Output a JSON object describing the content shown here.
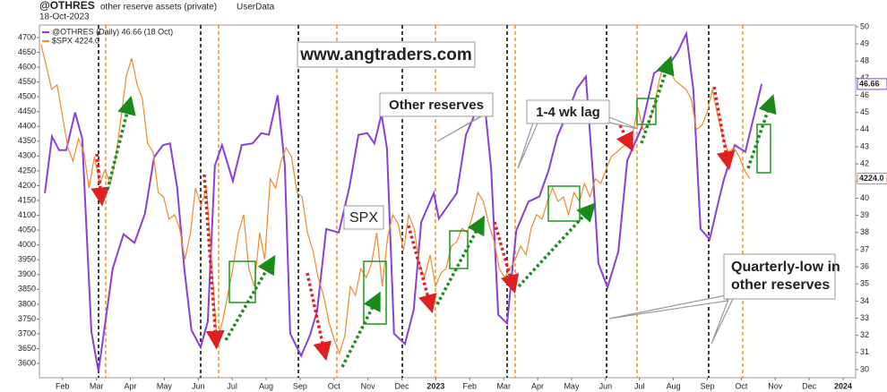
{
  "chart_data": {
    "type": "line",
    "title": "@OTHRES",
    "subtitle": "other reserve assets (private)",
    "source": "UserData",
    "date": "18-Oct-2023",
    "xlim": [
      1.32,
      25.37
    ],
    "ylim": [
      3552,
      4742
    ],
    "y2lim": [
      29.53,
      50.1
    ],
    "xticks": [
      {
        "value": 2,
        "label": "Feb"
      },
      {
        "value": 3,
        "label": "Mar"
      },
      {
        "value": 4,
        "label": "Apr"
      },
      {
        "value": 5,
        "label": "May"
      },
      {
        "value": 6,
        "label": "Jun"
      },
      {
        "value": 7,
        "label": "Jul"
      },
      {
        "value": 8,
        "label": "Aug"
      },
      {
        "value": 9,
        "label": "Sep"
      },
      {
        "value": 10,
        "label": "Oct"
      },
      {
        "value": 11,
        "label": "Nov"
      },
      {
        "value": 12,
        "label": "Dec"
      },
      {
        "value": 13,
        "label": "2023"
      },
      {
        "value": 14,
        "label": "Feb"
      },
      {
        "value": 15,
        "label": "Mar"
      },
      {
        "value": 16,
        "label": "Apr"
      },
      {
        "value": 17,
        "label": "May"
      },
      {
        "value": 18,
        "label": "Jun"
      },
      {
        "value": 19,
        "label": "Jul"
      },
      {
        "value": 20,
        "label": "Aug"
      },
      {
        "value": 21,
        "label": "Sep"
      },
      {
        "value": 22,
        "label": "Oct"
      },
      {
        "value": 23,
        "label": "Nov"
      },
      {
        "value": 24,
        "label": "Dec"
      },
      {
        "value": 25,
        "label": "2024"
      }
    ],
    "yticks": [
      3600,
      3650,
      3700,
      3750,
      3800,
      3850,
      3900,
      3950,
      4000,
      4050,
      4100,
      4150,
      4200,
      4250,
      4300,
      4350,
      4400,
      4450,
      4500,
      4550,
      4600,
      4650,
      4700
    ],
    "y2ticks": [
      30,
      31,
      32,
      33,
      34,
      35,
      36,
      37,
      38,
      39,
      40,
      41,
      42,
      43,
      44,
      45,
      46,
      47,
      48,
      49,
      50
    ],
    "series": [
      {
        "name": "@OTHRES (Daily) 46.66 (18 Oct)",
        "color": "#8a3fd6",
        "axis": "y2",
        "x": [
          1.48,
          1.69,
          1.9,
          2.11,
          2.37,
          2.58,
          2.85,
          3.06,
          3.27,
          3.48,
          3.8,
          4.12,
          4.43,
          4.7,
          4.96,
          5.17,
          5.38,
          5.59,
          5.8,
          6.07,
          6.28,
          6.49,
          6.7,
          7.02,
          7.28,
          7.6,
          7.86,
          8.08,
          8.34,
          8.55,
          8.71,
          9.03,
          9.29,
          9.5,
          9.77,
          10.14,
          10.45,
          10.72,
          10.98,
          11.19,
          11.4,
          11.56,
          11.77,
          12.09,
          12.35,
          12.57,
          12.94,
          13.09,
          13.62,
          13.89,
          14.41,
          14.63,
          14.84,
          15.1,
          15.37,
          15.73,
          16.05,
          16.32,
          16.58,
          16.84,
          17.16,
          17.42,
          17.64,
          17.79,
          18.06,
          18.38,
          18.64,
          19.06,
          19.43,
          19.91,
          20.12,
          20.38,
          20.59,
          20.8,
          21.07,
          21.28,
          21.49,
          21.81,
          22.12,
          22.6
        ],
        "values": [
          40.3,
          43.6,
          42.8,
          42.8,
          45.0,
          43.5,
          32.2,
          29.9,
          32.9,
          35.9,
          37.9,
          37.4,
          39.1,
          42.4,
          43.1,
          43.2,
          40.6,
          35.9,
          32.3,
          31.3,
          32.8,
          41.9,
          43.1,
          41.0,
          43.1,
          43.2,
          43.8,
          43.7,
          46.0,
          41.9,
          32.1,
          30.8,
          32.0,
          33.4,
          38.2,
          38.0,
          40.6,
          43.7,
          43.8,
          43.2,
          44.9,
          42.9,
          32.1,
          31.5,
          33.5,
          38.6,
          40.3,
          38.8,
          40.3,
          43.7,
          46.1,
          41.7,
          33.2,
          32.7,
          38.1,
          39.8,
          40.1,
          41.6,
          43.6,
          44.8,
          46.4,
          47.1,
          41.1,
          36.2,
          34.8,
          36.9,
          42.2,
          44.1,
          47.3,
          47.9,
          48.5,
          49.6,
          46.3,
          38.2,
          37.6,
          39.4,
          41.1,
          43.1,
          42.7,
          46.66
        ]
      },
      {
        "name": "$SPX 4224.0",
        "color": "#f0892c",
        "last_value_label": "4224.0",
        "x": [
          1.37,
          1.53,
          1.68,
          1.84,
          2.0,
          2.16,
          2.31,
          2.47,
          2.63,
          2.78,
          2.94,
          3.1,
          3.25,
          3.41,
          3.57,
          3.73,
          3.88,
          4.04,
          4.2,
          4.35,
          4.51,
          4.67,
          4.82,
          4.98,
          5.14,
          5.3,
          5.45,
          5.61,
          5.77,
          5.92,
          6.08,
          6.24,
          6.39,
          6.55,
          6.71,
          6.87,
          7.02,
          7.18,
          7.34,
          7.49,
          7.65,
          7.81,
          7.96,
          8.12,
          8.28,
          8.44,
          8.59,
          8.75,
          8.91,
          9.06,
          9.22,
          9.38,
          9.53,
          9.69,
          9.85,
          10.01,
          10.16,
          10.32,
          10.48,
          10.63,
          10.79,
          10.95,
          11.1,
          11.26,
          11.42,
          11.58,
          11.73,
          11.89,
          12.05,
          12.2,
          12.36,
          12.52,
          12.67,
          12.83,
          12.99,
          13.15,
          13.3,
          13.46,
          13.62,
          13.77,
          13.93,
          14.09,
          14.24,
          14.4,
          14.56,
          14.72,
          14.87,
          15.03,
          15.19,
          15.34,
          15.5,
          15.66,
          15.81,
          15.97,
          16.13,
          16.29,
          16.44,
          16.6,
          16.76,
          16.91,
          17.07,
          17.23,
          17.38,
          17.54,
          17.7,
          17.86,
          18.01,
          18.17,
          18.33,
          18.48,
          18.64,
          18.8,
          18.95,
          19.11,
          19.27,
          19.43,
          19.58,
          19.74,
          19.9,
          20.05,
          20.21,
          20.37,
          20.52,
          20.68,
          20.84,
          21.0,
          21.15,
          21.31,
          21.47,
          21.62,
          21.78,
          21.94,
          22.09,
          22.25
        ],
        "values": [
          4676,
          4600,
          4525,
          4540,
          4434,
          4328,
          4283,
          4359,
          4313,
          4192,
          4298,
          4207,
          4253,
          4207,
          4298,
          4434,
          4570,
          4630,
          4540,
          4495,
          4343,
          4313,
          4177,
          4162,
          4087,
          4102,
          4056,
          3951,
          4041,
          4192,
          4132,
          4192,
          3951,
          3679,
          3740,
          3830,
          3920,
          4041,
          4102,
          3920,
          3860,
          4041,
          3951,
          4223,
          4192,
          4283,
          4328,
          4298,
          4177,
          4162,
          4041,
          3981,
          3890,
          3830,
          3740,
          3679,
          3633,
          3694,
          3860,
          3830,
          3920,
          3890,
          3935,
          4041,
          3860,
          4026,
          4102,
          4071,
          3981,
          4102,
          4056,
          3935,
          3890,
          3966,
          3860,
          3905,
          3920,
          3996,
          4011,
          4056,
          4041,
          4102,
          4177,
          4147,
          4071,
          4011,
          3920,
          3890,
          3920,
          3951,
          3996,
          3966,
          4056,
          4102,
          4087,
          4147,
          4192,
          4147,
          4162,
          4102,
          4177,
          4147,
          4207,
          4162,
          4223,
          4207,
          4253,
          4298,
          4313,
          4328,
          4343,
          4374,
          4464,
          4389,
          4404,
          4464,
          4555,
          4615,
          4585,
          4555,
          4540,
          4525,
          4495,
          4389,
          4404,
          4449,
          4525,
          4434,
          4359,
          4313,
          4328,
          4298,
          4253,
          4224
        ]
      }
    ],
    "annotations": [
      {
        "text": "www.angtraders.com",
        "color": "#1a9a1a"
      },
      {
        "text": "Other reserves",
        "color": "#8a3fd6"
      },
      {
        "text": "1-4 wk lag",
        "color": "#e0892c"
      },
      {
        "text": "SPX",
        "color": "#e0692c"
      },
      {
        "lines": [
          "Quarterly-low in",
          "other reserves"
        ],
        "color": "#000000"
      }
    ]
  }
}
